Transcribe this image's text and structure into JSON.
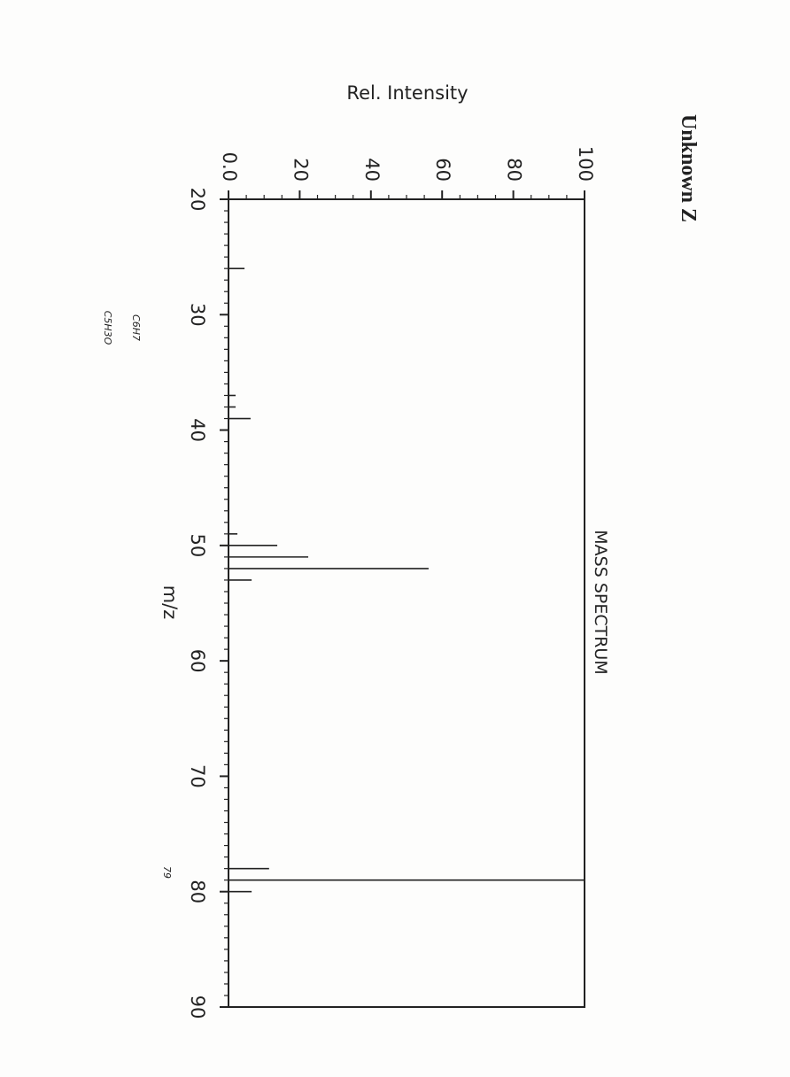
{
  "chart_data": {
    "type": "bar",
    "title": "Unknown Z",
    "subtitle": "MASS SPECTRUM",
    "x_label": "m/z",
    "y_label": "Rel. Intensity",
    "x": [
      26,
      37,
      38,
      39,
      49,
      50,
      51,
      52,
      53,
      78,
      79,
      80
    ],
    "values": [
      4.5,
      2,
      2,
      6.2,
      2.5,
      13.7,
      22.4,
      56.2,
      6.5,
      11.4,
      100,
      6.5
    ],
    "color": "#222222",
    "xlim": [
      20,
      90
    ],
    "xticks": [
      20,
      30,
      40,
      50,
      60,
      70,
      80,
      90
    ],
    "ylim": [
      0,
      100
    ],
    "yticks": [
      {
        "value": 0,
        "label": "0.0"
      },
      20,
      40,
      60,
      80,
      100
    ],
    "annotations": [
      "C6H7",
      "C5H3O",
      "79"
    ]
  }
}
